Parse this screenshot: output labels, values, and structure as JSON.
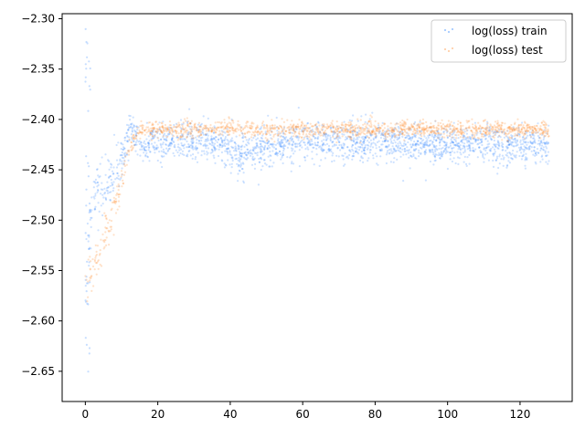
{
  "chart_data": {
    "type": "scatter",
    "title": "",
    "xlabel": "",
    "ylabel": "",
    "xlim": [
      -6.4,
      134.4
    ],
    "ylim": [
      -2.68,
      -2.295
    ],
    "x_ticks": [
      0,
      20,
      40,
      60,
      80,
      100,
      120
    ],
    "x_tick_labels": [
      "0",
      "20",
      "40",
      "60",
      "80",
      "100",
      "120"
    ],
    "y_ticks": [
      -2.65,
      -2.6,
      -2.55,
      -2.5,
      -2.45,
      -2.4,
      -2.35,
      -2.3
    ],
    "y_tick_labels": [
      "−2.65",
      "−2.60",
      "−2.55",
      "−2.50",
      "−2.45",
      "−2.40",
      "−2.35",
      "−2.30"
    ],
    "grid": false,
    "legend_position": "top-right",
    "series": [
      {
        "name": "log(loss) train",
        "color": "#1f77b4",
        "marker_color": "#1f7bff",
        "x_range": [
          0,
          128
        ],
        "trend": {
          "x": [
            0,
            1,
            2,
            3,
            5,
            7,
            9,
            11,
            12,
            13,
            15,
            17,
            20,
            25,
            30,
            35,
            38,
            42,
            46,
            50,
            60,
            80,
            100,
            128
          ],
          "y": [
            -2.57,
            -2.52,
            -2.48,
            -2.47,
            -2.47,
            -2.46,
            -2.45,
            -2.43,
            -2.415,
            -2.41,
            -2.43,
            -2.425,
            -2.42,
            -2.42,
            -2.42,
            -2.422,
            -2.425,
            -2.435,
            -2.43,
            -2.425,
            -2.422,
            -2.422,
            -2.425,
            -2.425
          ]
        },
        "spread": {
          "x": [
            0,
            2,
            5,
            10,
            13,
            20,
            40,
            60,
            128
          ],
          "y": [
            0.045,
            0.03,
            0.028,
            0.02,
            0.015,
            0.018,
            0.02,
            0.018,
            0.018
          ]
        }
      },
      {
        "name": "log(loss) test",
        "color": "#ff7f0e",
        "marker_color": "#ff8a2a",
        "x_range": [
          0,
          128
        ],
        "trend": {
          "x": [
            0,
            2,
            4,
            6,
            8,
            10,
            12,
            14,
            16,
            20,
            30,
            40,
            45,
            60,
            80,
            100,
            128
          ],
          "y": [
            -2.57,
            -2.55,
            -2.53,
            -2.51,
            -2.49,
            -2.46,
            -2.43,
            -2.415,
            -2.41,
            -2.41,
            -2.41,
            -2.408,
            -2.41,
            -2.41,
            -2.41,
            -2.41,
            -2.41
          ]
        },
        "spread": {
          "x": [
            0,
            10,
            14,
            40,
            128
          ],
          "y": [
            0.02,
            0.015,
            0.008,
            0.009,
            0.008
          ]
        }
      }
    ]
  }
}
